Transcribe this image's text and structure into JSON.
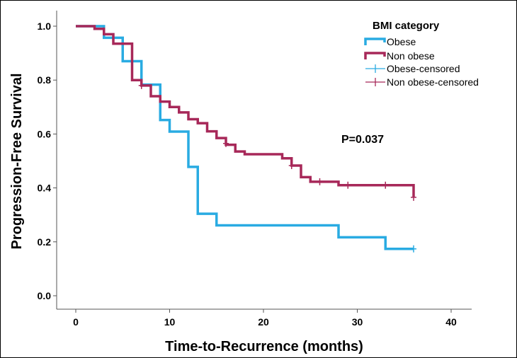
{
  "chart_data": {
    "type": "line",
    "xlabel": "Time-to-Recurrence (months)",
    "ylabel": "Progression-Free Survival",
    "xlim": [
      0,
      40
    ],
    "ylim": [
      0.0,
      1.0
    ],
    "xticks": [
      "0",
      "10",
      "20",
      "30",
      "40"
    ],
    "yticks": [
      "0.0",
      "0.2",
      "0.4",
      "0.6",
      "0.8",
      "1.0"
    ],
    "grid": false,
    "legend_title": "BMI category",
    "legend_position": "top-right",
    "annotation": "P=0.037",
    "series": [
      {
        "name": "Obese",
        "color": "#29ABE2",
        "step_points": [
          [
            0,
            1.0
          ],
          [
            3,
            0.957
          ],
          [
            5,
            0.87
          ],
          [
            7,
            0.783
          ],
          [
            9,
            0.652
          ],
          [
            10,
            0.609
          ],
          [
            12,
            0.478
          ],
          [
            13,
            0.304
          ],
          [
            15,
            0.261
          ],
          [
            28,
            0.217
          ],
          [
            33,
            0.174
          ],
          [
            36,
            0.174
          ]
        ],
        "censored": [
          [
            36,
            0.174
          ]
        ]
      },
      {
        "name": "Non obese",
        "color": "#A72859",
        "step_points": [
          [
            0,
            1.0
          ],
          [
            2,
            0.99
          ],
          [
            3,
            0.97
          ],
          [
            4,
            0.935
          ],
          [
            6,
            0.8
          ],
          [
            7,
            0.78
          ],
          [
            8,
            0.74
          ],
          [
            9,
            0.72
          ],
          [
            10,
            0.7
          ],
          [
            11,
            0.68
          ],
          [
            12,
            0.655
          ],
          [
            13,
            0.64
          ],
          [
            14,
            0.61
          ],
          [
            15,
            0.585
          ],
          [
            16,
            0.56
          ],
          [
            17,
            0.535
          ],
          [
            18,
            0.525
          ],
          [
            22,
            0.51
          ],
          [
            23,
            0.483
          ],
          [
            24,
            0.44
          ],
          [
            25,
            0.423
          ],
          [
            28,
            0.41
          ],
          [
            36,
            0.365
          ]
        ],
        "censored": [
          [
            7,
            0.78
          ],
          [
            16,
            0.565
          ],
          [
            23,
            0.483
          ],
          [
            26,
            0.423
          ],
          [
            29,
            0.41
          ],
          [
            33,
            0.41
          ],
          [
            36,
            0.365
          ]
        ]
      }
    ],
    "legend_entries": [
      "Obese",
      "Non obese",
      "Obese-censored",
      "Non obese-censored"
    ]
  }
}
